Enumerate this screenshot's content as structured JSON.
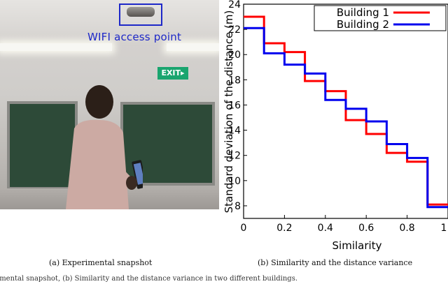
{
  "photo": {
    "annotation_label": "WIFI access point",
    "exit_sign": "EXIT",
    "colors": {
      "annotation": "#1e28c8",
      "exit_sign": "#1aa56f"
    }
  },
  "captions": {
    "a": "(a)  Experimental snapshot",
    "b": "(b)  Similarity and the distance variance",
    "figure_partial": "imental snapshot, (b) Similarity and the distance variance in two different buildings."
  },
  "chart_data": {
    "type": "line",
    "step": true,
    "xlabel": "Similarity",
    "ylabel": "Standard deviation of the distance (m)",
    "xlim": [
      0,
      1
    ],
    "ylim": [
      7,
      24
    ],
    "xticks": [
      "0",
      "0.2",
      "0.4",
      "0.6",
      "0.8",
      "1"
    ],
    "yticks": [
      "8",
      "10",
      "12",
      "14",
      "16",
      "18",
      "20",
      "22",
      "24"
    ],
    "grid": false,
    "legend_position": "top-right",
    "series": [
      {
        "name": "Building 1",
        "color": "#ff0000",
        "x": [
          0,
          0.1,
          0.2,
          0.3,
          0.4,
          0.5,
          0.6,
          0.7,
          0.8,
          0.9,
          1.0
        ],
        "y": [
          23.0,
          20.9,
          20.2,
          17.9,
          17.1,
          14.8,
          13.7,
          12.2,
          11.5,
          8.1,
          8.1
        ]
      },
      {
        "name": "Building 2",
        "color": "#0000ee",
        "x": [
          0,
          0.1,
          0.2,
          0.3,
          0.4,
          0.5,
          0.6,
          0.7,
          0.8,
          0.9,
          1.0
        ],
        "y": [
          22.1,
          20.1,
          19.2,
          18.5,
          16.4,
          15.7,
          14.7,
          12.9,
          11.8,
          7.9,
          7.9
        ]
      }
    ]
  }
}
